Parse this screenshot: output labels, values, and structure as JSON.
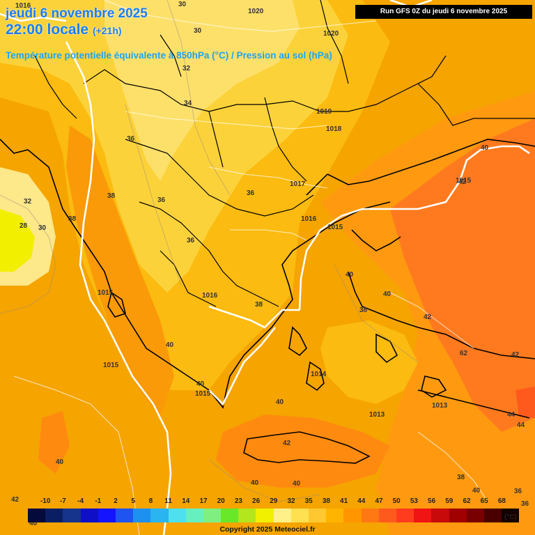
{
  "title": {
    "date": "jeudi 6 novembre 2025",
    "time": "22:00 locale",
    "offset": "(+21h)",
    "subtitle": "Température potentielle équivalente à 850hPa (°C) / Pression au sol (hPa)",
    "run": "Run GFS 0Z du jeudi 6 novembre 2025"
  },
  "legend": {
    "unit": "(°C)",
    "labels": [
      "-10",
      "-7",
      "-4",
      "-1",
      "2",
      "5",
      "8",
      "11",
      "14",
      "17",
      "20",
      "23",
      "26",
      "29",
      "32",
      "35",
      "38",
      "41",
      "44",
      "47",
      "50",
      "53",
      "56",
      "59",
      "62",
      "65",
      "68"
    ],
    "colors": [
      "#040a3a",
      "#0a1f63",
      "#16348c",
      "#0f0fc8",
      "#1414ff",
      "#1e54f0",
      "#1e90f0",
      "#2ab4f0",
      "#4fe0f0",
      "#66f0c0",
      "#7ff07f",
      "#68e828",
      "#b4e61e",
      "#f0f000",
      "#fff08a",
      "#ffe050",
      "#ffc830",
      "#ffb400",
      "#ff9600",
      "#ff7814",
      "#ff5a1e",
      "#ff3c1e",
      "#f01414",
      "#c80a0a",
      "#a00000",
      "#780000",
      "#4a0000",
      "#140000"
    ]
  },
  "copyright": "Copyright 2025 Meteociel.fr",
  "map_labels": {
    "isotherm": [
      "30",
      "30",
      "32",
      "34",
      "36",
      "36",
      "36",
      "36",
      "38",
      "32",
      "28",
      "30",
      "38",
      "38",
      "38",
      "40",
      "40",
      "40",
      "40",
      "40",
      "40",
      "40",
      "40",
      "42",
      "42",
      "42",
      "42",
      "44",
      "44",
      "36",
      "36",
      "40",
      "42",
      "40",
      "62",
      "38",
      "40"
    ],
    "pressure": [
      "1016",
      "1020",
      "1020",
      "1019",
      "1018",
      "1017",
      "1016",
      "1015",
      "1015",
      "1015",
      "1016",
      "1015",
      "1015",
      "1014",
      "1013",
      "1013"
    ]
  }
}
